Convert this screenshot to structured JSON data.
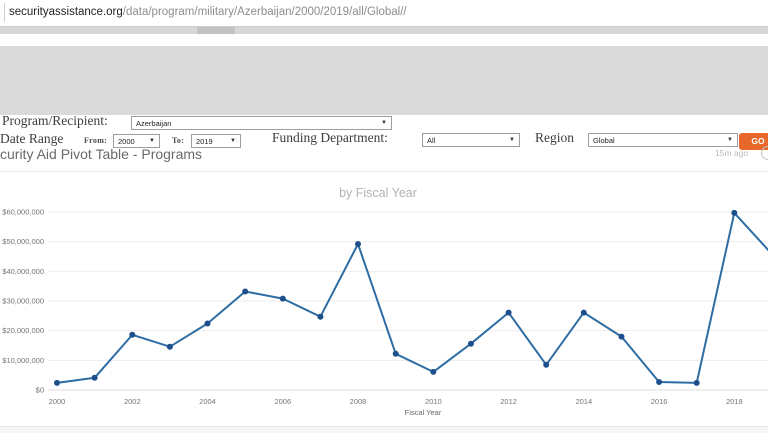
{
  "browser": {
    "url_host": "securityassistance.org",
    "url_path": "/data/program/military/Azerbaijan/2000/2019/all/Global//"
  },
  "filters": {
    "program_recipient_label": "Program/Recipient:",
    "program_recipient_value": "Azerbaijan",
    "date_range_label": "Date Range",
    "from_label": "From:",
    "from_value": "2000",
    "to_label": "To:",
    "to_value": "2019",
    "funding_department_label": "Funding Department:",
    "funding_department_value": "All",
    "region_label": "Region",
    "region_value": "Global",
    "go_label": "GO",
    "accent_color": "#e8682c"
  },
  "panel": {
    "title": "curity Aid Pivot Table - Programs",
    "updated": "15m ago"
  },
  "chart_data": {
    "type": "line",
    "title": "by Fiscal Year",
    "xlabel": "Fiscal Year",
    "ylabel": "",
    "x": [
      2000,
      2001,
      2002,
      2003,
      2004,
      2005,
      2006,
      2007,
      2008,
      2009,
      2010,
      2011,
      2012,
      2013,
      2014,
      2015,
      2016,
      2017,
      2018,
      2019
    ],
    "values": [
      2400000,
      4100000,
      18600000,
      14600000,
      22400000,
      33200000,
      30800000,
      24700000,
      49200000,
      12200000,
      6100000,
      15600000,
      26100000,
      8500000,
      26100000,
      18000000,
      2700000,
      2400000,
      59700000,
      45800000
    ],
    "ylim": [
      0,
      60000000
    ],
    "yticks": [
      0,
      10000000,
      20000000,
      30000000,
      40000000,
      50000000,
      60000000
    ],
    "ytick_labels": [
      "$0",
      "$10,000,000",
      "$20,000,000",
      "$30,000,000",
      "$40,000,000",
      "$50,000,000",
      "$60,000,000"
    ],
    "xticks": [
      2000,
      2002,
      2004,
      2006,
      2008,
      2010,
      2012,
      2014,
      2016,
      2018
    ],
    "grid": true,
    "legend": "none",
    "line_color": "#2e6da4",
    "marker_color": "#1d4f8c"
  }
}
